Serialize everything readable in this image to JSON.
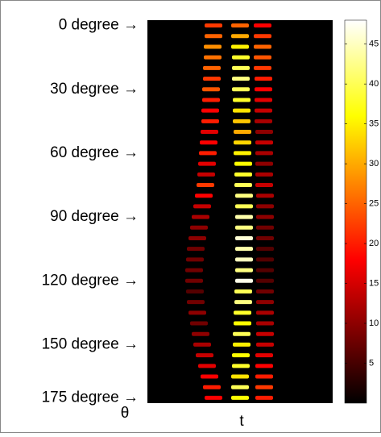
{
  "chart_data": {
    "type": "heatmap",
    "ylabel": "θ",
    "xlabel": "t",
    "xlim": [
      0,
      230
    ],
    "ylim": [
      -2.5,
      177.5
    ],
    "yticks": [
      {
        "value": 0,
        "label": "0 degree →"
      },
      {
        "value": 30,
        "label": "30 degree →"
      },
      {
        "value": 60,
        "label": "60 degree →"
      },
      {
        "value": 90,
        "label": "90 degree →"
      },
      {
        "value": 120,
        "label": "120 degree →"
      },
      {
        "value": 150,
        "label": "150 degree →"
      },
      {
        "value": 175,
        "label": "175 degree →"
      }
    ],
    "clim": [
      0,
      48
    ],
    "cticks": [
      5,
      10,
      15,
      20,
      25,
      30,
      35,
      40,
      45
    ],
    "x": [
      82,
      115,
      143,
      82,
      115,
      143,
      81,
      115,
      143,
      81,
      116,
      143,
      80,
      116,
      143,
      80,
      116,
      144,
      79,
      116,
      144,
      79,
      117,
      144,
      78,
      117,
      144,
      78,
      117,
      144,
      77,
      118,
      145,
      76,
      118,
      145,
      75,
      118,
      145,
      74,
      119,
      145,
      73,
      119,
      145,
      72,
      119,
      145,
      70,
      120,
      146,
      68,
      120,
      146,
      66,
      120,
      146,
      64,
      120,
      146,
      62,
      120,
      146,
      60,
      120,
      146,
      59,
      120,
      146,
      58,
      120,
      146,
      58,
      120,
      146,
      59,
      119,
      146,
      60,
      119,
      146,
      62,
      118,
      146,
      64,
      118,
      146,
      66,
      117,
      146,
      68,
      117,
      146,
      71,
      116,
      145,
      74,
      116,
      145,
      77,
      115,
      145,
      80,
      115,
      145,
      82,
      115,
      145
    ],
    "y": [
      0,
      0,
      0,
      5,
      5,
      5,
      10,
      10,
      10,
      15,
      15,
      15,
      20,
      20,
      20,
      25,
      25,
      25,
      30,
      30,
      30,
      35,
      35,
      35,
      40,
      40,
      40,
      45,
      45,
      45,
      50,
      50,
      50,
      55,
      55,
      55,
      60,
      60,
      60,
      65,
      65,
      65,
      70,
      70,
      70,
      75,
      75,
      75,
      80,
      80,
      80,
      85,
      85,
      85,
      90,
      90,
      90,
      95,
      95,
      95,
      100,
      100,
      100,
      105,
      105,
      105,
      110,
      110,
      110,
      115,
      115,
      115,
      120,
      120,
      120,
      125,
      125,
      125,
      130,
      130,
      130,
      135,
      135,
      135,
      140,
      140,
      140,
      145,
      145,
      145,
      150,
      150,
      150,
      155,
      155,
      155,
      160,
      160,
      160,
      165,
      165,
      165,
      170,
      170,
      170,
      175,
      175,
      175
    ],
    "values": [
      22,
      25,
      18,
      25,
      30,
      22,
      28,
      35,
      25,
      26,
      38,
      24,
      25,
      40,
      22,
      22,
      42,
      20,
      24,
      40,
      18,
      20,
      38,
      16,
      18,
      34,
      14,
      20,
      32,
      12,
      16,
      30,
      10,
      18,
      33,
      14,
      20,
      35,
      12,
      16,
      36,
      10,
      14,
      38,
      12,
      22,
      40,
      14,
      18,
      42,
      12,
      14,
      40,
      10,
      12,
      44,
      10,
      10,
      42,
      8,
      10,
      46,
      8,
      8,
      44,
      6,
      8,
      45,
      6,
      8,
      42,
      6,
      8,
      47,
      6,
      6,
      40,
      8,
      8,
      42,
      10,
      10,
      38,
      12,
      8,
      36,
      12,
      10,
      40,
      14,
      12,
      35,
      14,
      14,
      36,
      16,
      16,
      38,
      18,
      18,
      34,
      20,
      20,
      40,
      22,
      18,
      36,
      20
    ]
  }
}
